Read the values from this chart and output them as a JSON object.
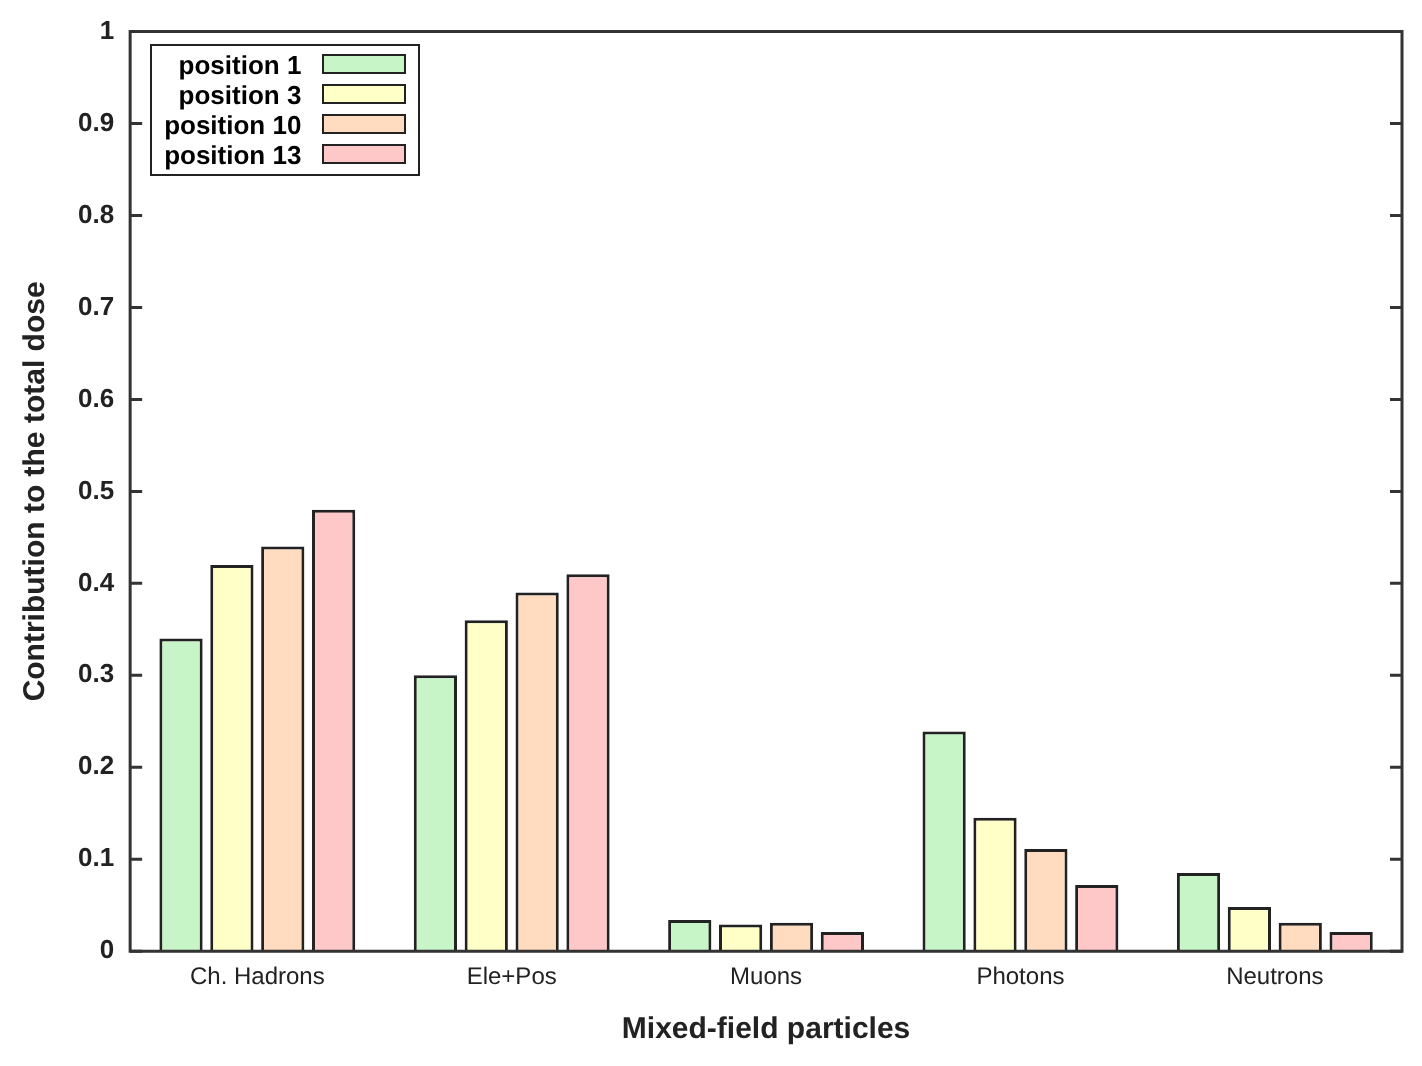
{
  "chart_data": {
    "type": "bar",
    "xlabel": "Mixed-field particles",
    "ylabel": "Contribution to the total dose",
    "categories": [
      "Ch. Hadrons",
      "Ele+Pos",
      "Muons",
      "Photons",
      "Neutrons"
    ],
    "series": [
      {
        "name": "position 1",
        "color": "#c8f5c8",
        "values": [
          0.34,
          0.3,
          0.034,
          0.239,
          0.085
        ]
      },
      {
        "name": "position 3",
        "color": "#ffffc8",
        "values": [
          0.42,
          0.36,
          0.029,
          0.145,
          0.048
        ]
      },
      {
        "name": "position 10",
        "color": "#ffdcc0",
        "values": [
          0.44,
          0.39,
          0.031,
          0.111,
          0.031
        ]
      },
      {
        "name": "position 13",
        "color": "#ffc8c8",
        "values": [
          0.48,
          0.41,
          0.021,
          0.072,
          0.021
        ]
      }
    ],
    "ylim": [
      0,
      1
    ],
    "yticks": [
      0,
      0.1,
      0.2,
      0.3,
      0.4,
      0.5,
      0.6,
      0.7,
      0.8,
      0.9,
      1
    ],
    "grid": false,
    "legend": "top left"
  }
}
